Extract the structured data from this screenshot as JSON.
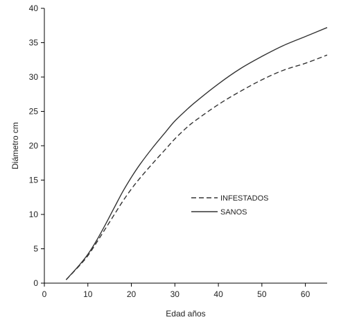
{
  "chart_data": {
    "type": "line",
    "xlabel": "Edad años",
    "ylabel": "Diámetro  cm",
    "xlim": [
      0,
      65
    ],
    "ylim": [
      0,
      40
    ],
    "xticks": [
      0,
      10,
      20,
      30,
      40,
      50,
      60
    ],
    "yticks": [
      0,
      5,
      10,
      15,
      20,
      25,
      30,
      35,
      40
    ],
    "grid": false,
    "legend_position": "center-right",
    "series": [
      {
        "name": "INFESTADOS",
        "style": "dashed",
        "color": "#333333",
        "x": [
          5,
          8,
          10,
          12,
          14,
          16,
          18,
          20,
          22,
          25,
          28,
          30,
          33,
          35,
          40,
          45,
          50,
          55,
          60,
          65
        ],
        "y": [
          0.5,
          2.5,
          4.0,
          5.9,
          7.9,
          9.9,
          11.9,
          13.7,
          15.3,
          17.5,
          19.6,
          21.0,
          22.8,
          23.8,
          26.0,
          27.9,
          29.6,
          31.0,
          32.0,
          33.2
        ]
      },
      {
        "name": "SANOS",
        "style": "solid",
        "color": "#333333",
        "x": [
          5,
          8,
          10,
          12,
          14,
          16,
          18,
          20,
          22,
          25,
          28,
          30,
          33,
          35,
          40,
          45,
          50,
          55,
          60,
          65
        ],
        "y": [
          0.5,
          2.6,
          4.2,
          6.2,
          8.5,
          10.9,
          13.3,
          15.4,
          17.3,
          19.8,
          22.1,
          23.6,
          25.4,
          26.5,
          29.0,
          31.2,
          33.0,
          34.6,
          35.9,
          37.2
        ]
      }
    ]
  }
}
